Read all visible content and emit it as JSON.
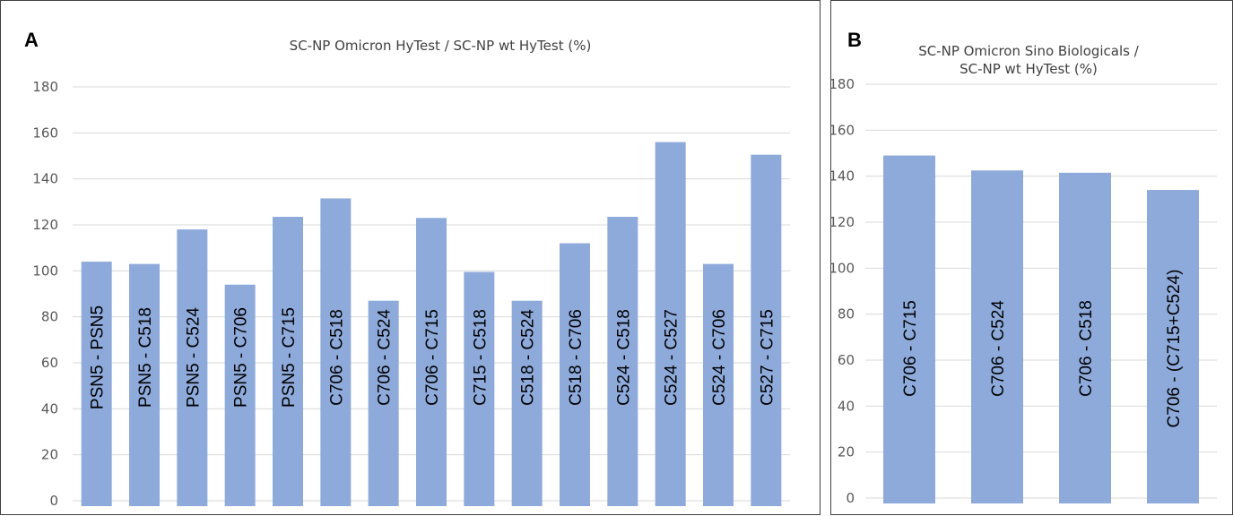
{
  "colors": {
    "bar": "#8eaadb",
    "grid": "#d9d9d9",
    "text": "#595959",
    "border": "#404040"
  },
  "chart_data": [
    {
      "type": "bar",
      "panel": "A",
      "title": "SC-NP Omicron HyTest / SC-NP wt HyTest (%)",
      "categories": [
        "PSN5 - PSN5",
        "PSN5 - C518",
        "PSN5 - C524",
        "PSN5 - C706",
        "PSN5 - C715",
        "C706 - C518",
        "C706 - C524",
        "C706 - C715",
        "C715 - C518",
        "C518 - C524",
        "C518 - C706",
        "C524 - C518",
        "C524 - C527",
        "C524 - C706",
        "C527 - C715"
      ],
      "values": [
        104,
        103,
        118,
        94,
        123.5,
        131.5,
        87,
        123,
        99.5,
        87,
        112,
        123.5,
        156,
        103,
        150.5
      ],
      "ylim": [
        0,
        180
      ],
      "yticks": [
        0,
        20,
        40,
        60,
        80,
        100,
        120,
        140,
        160,
        180
      ],
      "grid": true,
      "legend": "none"
    },
    {
      "type": "bar",
      "panel": "B",
      "title": "SC-NP Omicron Sino Biologicals / SC-NP wt HyTest (%)",
      "title_lines": [
        "SC-NP Omicron Sino Biologicals /",
        "SC-NP wt HyTest (%)"
      ],
      "categories": [
        "C706 - C715",
        "C706 - C524",
        "C706 - C518",
        "C706 - (C715+C524)"
      ],
      "values": [
        149,
        142.5,
        141.5,
        134
      ],
      "ylim": [
        0,
        180
      ],
      "yticks": [
        0,
        20,
        40,
        60,
        80,
        100,
        120,
        140,
        160,
        180
      ],
      "grid": true,
      "legend": "none"
    }
  ]
}
